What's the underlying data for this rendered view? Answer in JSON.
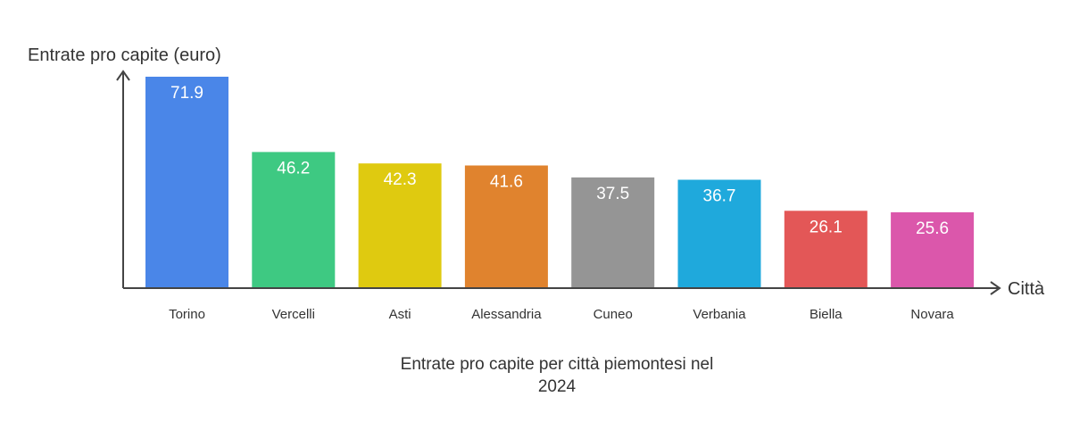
{
  "chart_data": {
    "type": "bar",
    "ylabel": "Entrate pro capite (euro)",
    "xlabel": "Città",
    "caption_lines": [
      "Entrate pro capite per città piemontesi nel",
      "2024"
    ],
    "categories": [
      "Torino",
      "Vercelli",
      "Asti",
      "Alessandria",
      "Cuneo",
      "Verbania",
      "Biella",
      "Novara"
    ],
    "values": [
      71.9,
      46.2,
      42.3,
      41.6,
      37.5,
      36.7,
      26.1,
      25.6
    ],
    "value_labels": [
      "71.9",
      "46.2",
      "42.3",
      "41.6",
      "37.5",
      "36.7",
      "26.1",
      "25.6"
    ],
    "colors": [
      "#4a86e8",
      "#3ec982",
      "#dfca10",
      "#e0832e",
      "#959595",
      "#1fa9dc",
      "#e35757",
      "#db57ab"
    ],
    "ylim": [
      0,
      71.9
    ],
    "grid": false,
    "legend": "none"
  }
}
